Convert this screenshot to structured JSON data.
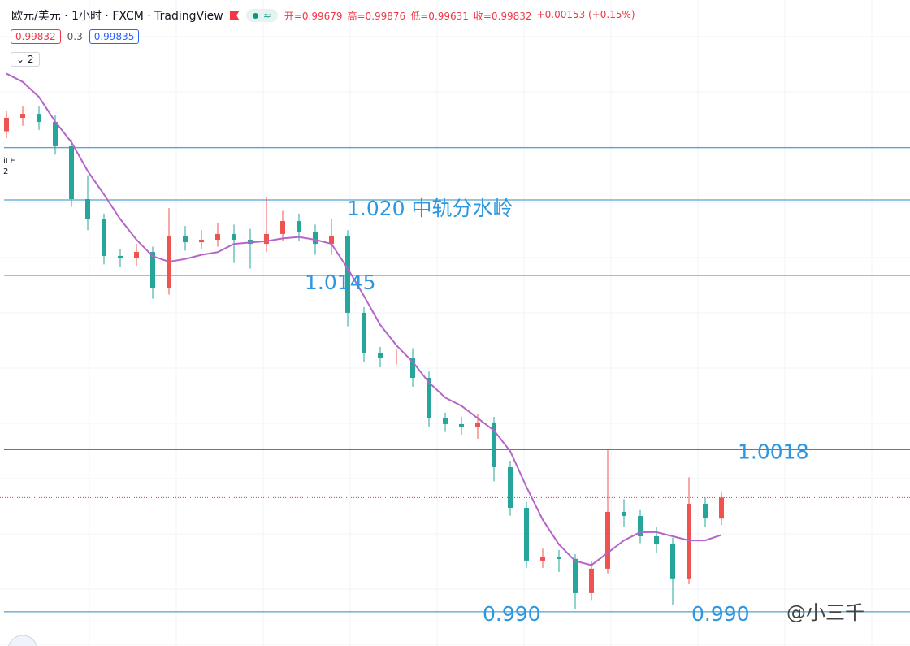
{
  "chart_data": {
    "type": "candlestick",
    "title": "欧元/美元 · 1小时 · FXCM · TradingView",
    "ohlc_legend": [
      "开=0.99679",
      "高=0.99876",
      "低=0.99631",
      "收=0.99832",
      "+0.00153 (+0.15%)"
    ],
    "price_boxes": [
      "0.99832",
      "0.3",
      "0.99835"
    ],
    "indicator_count": "2",
    "side_labels": [
      "iLE",
      "2"
    ],
    "watermark": "@小三千",
    "categories": [
      null,
      null,
      null,
      null,
      null,
      null,
      null,
      null,
      null,
      null,
      null,
      null,
      null,
      null,
      null,
      null,
      null,
      null,
      null,
      null,
      null,
      null,
      null,
      null,
      null,
      null,
      null,
      null,
      null,
      null,
      null,
      null,
      null,
      null,
      null,
      null,
      null,
      null,
      null,
      null,
      null,
      null,
      null,
      null,
      null
    ],
    "open": [
      1.025,
      1.02598,
      1.02627,
      1.02568,
      1.02391,
      1.02006,
      1.01858,
      1.01592,
      1.01574,
      1.01621,
      1.01355,
      1.0174,
      1.01692,
      1.0171,
      1.01752,
      1.0171,
      1.0168,
      1.01752,
      1.01846,
      1.01769,
      1.0168,
      1.0174,
      1.01178,
      1.00882,
      1.00852,
      1.00852,
      1.00704,
      1.00408,
      1.00367,
      1.00349,
      1.00379,
      1.00053,
      0.99757,
      0.99373,
      0.99402,
      0.99385,
      0.99136,
      0.99314,
      0.99728,
      0.99698,
      0.9955,
      0.99491,
      0.99243,
      0.99787,
      0.99679
    ],
    "high": [
      1.0265,
      1.0268,
      1.0268,
      1.0262,
      1.0244,
      1.0218,
      1.019,
      1.0164,
      1.0168,
      1.0166,
      1.0194,
      1.0181,
      1.0178,
      1.0183,
      1.0182,
      1.0179,
      1.0202,
      1.0192,
      1.019,
      1.0182,
      1.0186,
      1.0178,
      1.0122,
      1.0093,
      1.0091,
      1.0092,
      1.0075,
      1.0045,
      1.0042,
      1.0044,
      1.0042,
      1.001,
      0.998,
      0.9946,
      0.9945,
      0.9942,
      0.9937,
      1.0018,
      0.9982,
      0.9974,
      0.9962,
      0.9954,
      0.9998,
      0.9983,
      0.99876
    ],
    "low": [
      1.0245,
      1.0254,
      1.0251,
      1.0233,
      1.0195,
      1.0178,
      1.0153,
      1.0151,
      1.0152,
      1.0128,
      1.0131,
      1.0163,
      1.0164,
      1.0166,
      1.0154,
      1.015,
      1.0162,
      1.017,
      1.017,
      1.016,
      1.016,
      1.0108,
      1.0082,
      1.0078,
      1.008,
      1.0064,
      1.0035,
      1.0031,
      1.0029,
      1.0026,
      0.9995,
      0.997,
      0.9932,
      0.9932,
      0.9929,
      0.9902,
      0.9908,
      0.9928,
      0.9962,
      0.995,
      0.9943,
      0.9905,
      0.992,
      0.9962,
      0.99631
    ],
    "close": [
      1.02598,
      1.02627,
      1.02568,
      1.02391,
      1.02006,
      1.01858,
      1.01592,
      1.01574,
      1.01621,
      1.01355,
      1.0174,
      1.01692,
      1.0171,
      1.01752,
      1.0171,
      1.0168,
      1.01752,
      1.01846,
      1.01769,
      1.0168,
      1.0174,
      1.01178,
      1.00882,
      1.00852,
      1.00852,
      1.00704,
      1.00408,
      1.00367,
      1.00349,
      1.00379,
      1.00053,
      0.99757,
      0.99373,
      0.99402,
      0.99385,
      0.99136,
      0.99314,
      0.99728,
      0.99698,
      0.9955,
      0.99491,
      0.99243,
      0.99787,
      0.9968,
      0.99832
    ],
    "up_color": "#ef5350",
    "down_color": "#26a69a",
    "ma": {
      "color": "#b565c8",
      "values": [
        1.0292,
        1.0286,
        1.0275,
        1.0257,
        1.0242,
        1.0221,
        1.0204,
        1.0186,
        1.0171,
        1.0159,
        1.0155,
        1.0157,
        1.016,
        1.0162,
        1.0168,
        1.0169,
        1.017,
        1.0172,
        1.0173,
        1.0171,
        1.0168,
        1.015,
        1.013,
        1.0109,
        1.0094,
        1.0082,
        1.0067,
        1.0056,
        1.005,
        1.0041,
        1.0032,
        1.0017,
        0.9991,
        0.9967,
        0.9949,
        0.9937,
        0.9934,
        0.9943,
        0.9952,
        0.9958,
        0.9958,
        0.9955,
        0.9952,
        0.9952,
        0.9956
      ]
    },
    "ylim": [
      0.98751,
      1.03456
    ],
    "hlines": [
      {
        "value": 1.0238,
        "color": "#2a8cbf"
      },
      {
        "value": 1.02,
        "color": "#2a8cbf"
      },
      {
        "value": 1.0145,
        "color": "#2a8cbf"
      },
      {
        "value": 1.0018,
        "color": "#2a8cbf"
      },
      {
        "value": 0.99,
        "color": "#2a8cbf"
      }
    ],
    "annotations": [
      {
        "text": "1.020 中轨分水岭",
        "value": 1.02
      },
      {
        "text": "1.0145",
        "value": 1.0145
      },
      {
        "text": "1.0018",
        "value": 1.0018
      },
      {
        "text": "0.990",
        "value": 0.99
      },
      {
        "text": "0.990",
        "value": 0.99
      }
    ],
    "last_price": 0.99832,
    "last_price_color": "#f23645",
    "grid": true
  }
}
